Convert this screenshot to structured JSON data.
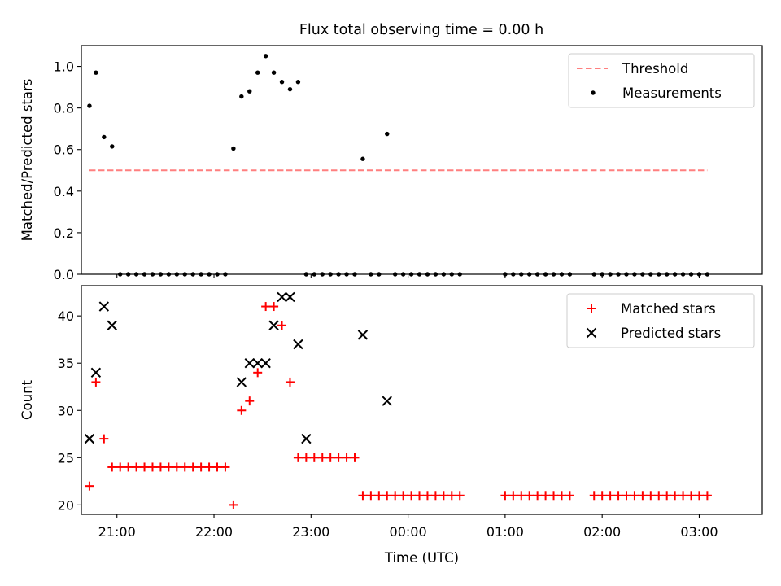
{
  "title": "Flux total observing time = 0.00 h",
  "colors": {
    "threshold": "#ff7f7f",
    "measurements": "#000000",
    "matched": "#ff0000",
    "predicted": "#000000"
  },
  "chart_data": [
    {
      "type": "scatter",
      "title": "Flux total observing time = 0.00 h",
      "xlabel": "",
      "ylabel": "Matched/Predicted stars",
      "xlim": [
        "20:38",
        "03:39"
      ],
      "ylim": [
        0,
        1.1
      ],
      "yticks": [
        "0.0",
        "0.2",
        "0.4",
        "0.6",
        "0.8",
        "1.0"
      ],
      "xticks": [
        "21:00",
        "22:00",
        "23:00",
        "00:00",
        "01:00",
        "02:00",
        "03:00"
      ],
      "show_xticklabels": false,
      "grid": false,
      "legend": {
        "position": "top-right",
        "entries": [
          {
            "label": "Threshold",
            "style": "dashed-line"
          },
          {
            "label": "Measurements",
            "style": "dot"
          }
        ]
      },
      "threshold": {
        "name": "Threshold",
        "value": 0.5,
        "x_start": "20:43",
        "x_end": "03:05"
      },
      "series": [
        {
          "name": "Measurements",
          "x": [
            "20:43",
            "20:47",
            "20:52",
            "20:57",
            "21:02",
            "21:07",
            "21:12",
            "21:17",
            "21:22",
            "21:27",
            "21:32",
            "21:37",
            "21:42",
            "21:47",
            "21:52",
            "21:57",
            "22:02",
            "22:07",
            "22:12",
            "22:17",
            "22:22",
            "22:27",
            "22:32",
            "22:37",
            "22:42",
            "22:47",
            "22:52",
            "22:57",
            "23:02",
            "23:07",
            "23:12",
            "23:17",
            "23:22",
            "23:27",
            "23:32",
            "23:37",
            "23:42",
            "23:47",
            "23:52",
            "23:57",
            "00:02",
            "00:07",
            "00:12",
            "00:17",
            "00:22",
            "00:27",
            "00:32",
            "01:00",
            "01:05",
            "01:10",
            "01:15",
            "01:20",
            "01:25",
            "01:30",
            "01:35",
            "01:40",
            "01:55",
            "02:00",
            "02:05",
            "02:10",
            "02:15",
            "02:20",
            "02:25",
            "02:30",
            "02:35",
            "02:40",
            "02:45",
            "02:50",
            "02:55",
            "03:00",
            "03:05"
          ],
          "y": [
            0.81,
            0.97,
            0.66,
            0.615,
            0,
            0,
            0,
            0,
            0,
            0,
            0,
            0,
            0,
            0,
            0,
            0,
            0,
            0,
            0.605,
            0.855,
            0.88,
            0.97,
            1.05,
            0.97,
            0.925,
            0.89,
            0.925,
            0,
            0,
            0,
            0,
            0,
            0,
            0,
            0.555,
            0,
            0,
            0.675,
            0,
            0,
            0,
            0,
            0,
            0,
            0,
            0,
            0,
            0,
            0,
            0,
            0,
            0,
            0,
            0,
            0,
            0,
            0,
            0,
            0,
            0,
            0,
            0,
            0,
            0,
            0,
            0,
            0,
            0,
            0,
            0,
            0
          ]
        }
      ]
    },
    {
      "type": "scatter",
      "title": "",
      "xlabel": "Time (UTC)",
      "ylabel": "Count",
      "xlim": [
        "20:38",
        "03:39"
      ],
      "ylim": [
        19,
        43.2
      ],
      "yticks": [
        "20",
        "25",
        "30",
        "35",
        "40"
      ],
      "xticks": [
        "21:00",
        "22:00",
        "23:00",
        "00:00",
        "01:00",
        "02:00",
        "03:00"
      ],
      "grid": false,
      "legend": {
        "position": "top-right",
        "entries": [
          {
            "label": "Matched stars",
            "style": "plus"
          },
          {
            "label": "Predicted stars",
            "style": "cross"
          }
        ]
      },
      "series": [
        {
          "name": "Matched stars",
          "x": [
            "20:43",
            "20:47",
            "20:52",
            "20:57",
            "21:02",
            "21:07",
            "21:12",
            "21:17",
            "21:22",
            "21:27",
            "21:32",
            "21:37",
            "21:42",
            "21:47",
            "21:52",
            "21:57",
            "22:02",
            "22:07",
            "22:12",
            "22:17",
            "22:22",
            "22:27",
            "22:32",
            "22:37",
            "22:42",
            "22:47",
            "22:52",
            "22:57",
            "23:02",
            "23:07",
            "23:12",
            "23:17",
            "23:22",
            "23:27",
            "23:32",
            "23:37",
            "23:42",
            "23:47",
            "23:52",
            "23:57",
            "00:02",
            "00:07",
            "00:12",
            "00:17",
            "00:22",
            "00:27",
            "00:32",
            "01:00",
            "01:05",
            "01:10",
            "01:15",
            "01:20",
            "01:25",
            "01:30",
            "01:35",
            "01:40",
            "01:55",
            "02:00",
            "02:05",
            "02:10",
            "02:15",
            "02:20",
            "02:25",
            "02:30",
            "02:35",
            "02:40",
            "02:45",
            "02:50",
            "02:55",
            "03:00",
            "03:05"
          ],
          "y": [
            22,
            33,
            27,
            24,
            24,
            24,
            24,
            24,
            24,
            24,
            24,
            24,
            24,
            24,
            24,
            24,
            24,
            24,
            20,
            30,
            31,
            34,
            41,
            41,
            39,
            33,
            25,
            25,
            25,
            25,
            25,
            25,
            25,
            25,
            21,
            21,
            21,
            21,
            21,
            21,
            21,
            21,
            21,
            21,
            21,
            21,
            21,
            21,
            21,
            21,
            21,
            21,
            21,
            21,
            21,
            21,
            21,
            21,
            21,
            21,
            21,
            21,
            21,
            21,
            21,
            21,
            21,
            21,
            21,
            21,
            21
          ]
        },
        {
          "name": "Predicted stars",
          "x": [
            "20:43",
            "20:47",
            "20:52",
            "20:57",
            "22:17",
            "22:22",
            "22:27",
            "22:32",
            "22:37",
            "22:42",
            "22:47",
            "22:52",
            "22:57",
            "23:32",
            "23:47"
          ],
          "y": [
            27,
            34,
            41,
            39,
            33,
            35,
            35,
            35,
            39,
            42,
            42,
            37,
            27,
            38,
            31
          ]
        }
      ]
    }
  ]
}
